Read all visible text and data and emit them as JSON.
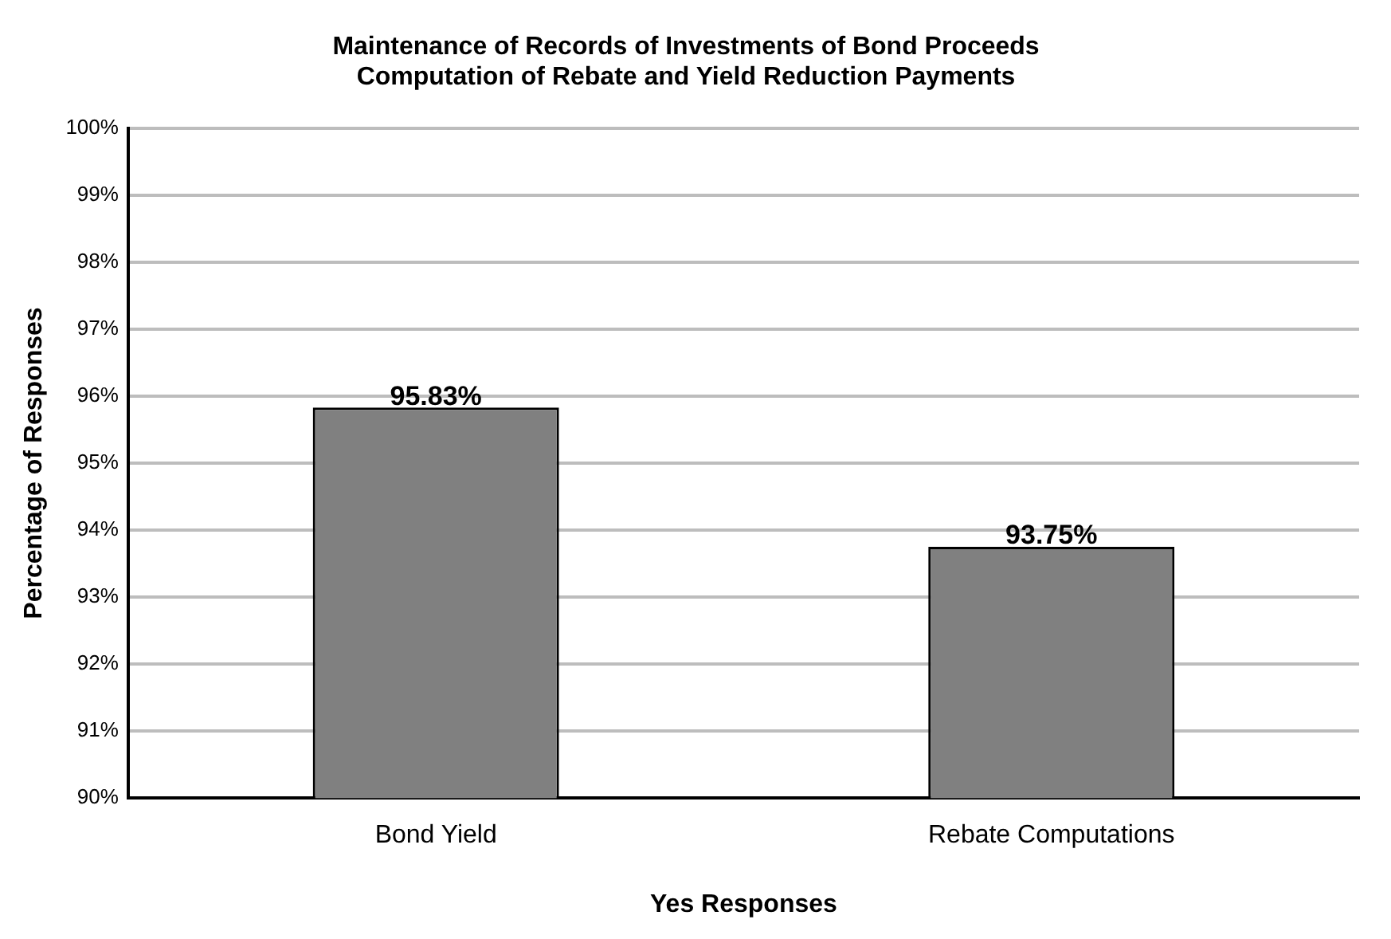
{
  "chart_data": {
    "type": "bar",
    "title": "Maintenance of Records of Investments of Bond Proceeds\nComputation of Rebate and Yield Reduction Payments",
    "xlabel": "Yes Responses",
    "ylabel": "Percentage of Responses",
    "categories": [
      "Bond Yield",
      "Rebate Computations"
    ],
    "values": [
      95.83,
      93.75
    ],
    "color": "#808080",
    "value_labels": [
      "95.83%",
      "93.75%"
    ],
    "ylim": [
      90,
      100
    ],
    "yticks": [
      {
        "value": 90,
        "label": "90%"
      },
      {
        "value": 91,
        "label": "91%"
      },
      {
        "value": 92,
        "label": "92%"
      },
      {
        "value": 93,
        "label": "93%"
      },
      {
        "value": 94,
        "label": "94%"
      },
      {
        "value": 95,
        "label": "95%"
      },
      {
        "value": 96,
        "label": "96%"
      },
      {
        "value": 97,
        "label": "97%"
      },
      {
        "value": 98,
        "label": "98%"
      },
      {
        "value": 99,
        "label": "99%"
      },
      {
        "value": 100,
        "label": "100%"
      }
    ],
    "grid": "y"
  }
}
